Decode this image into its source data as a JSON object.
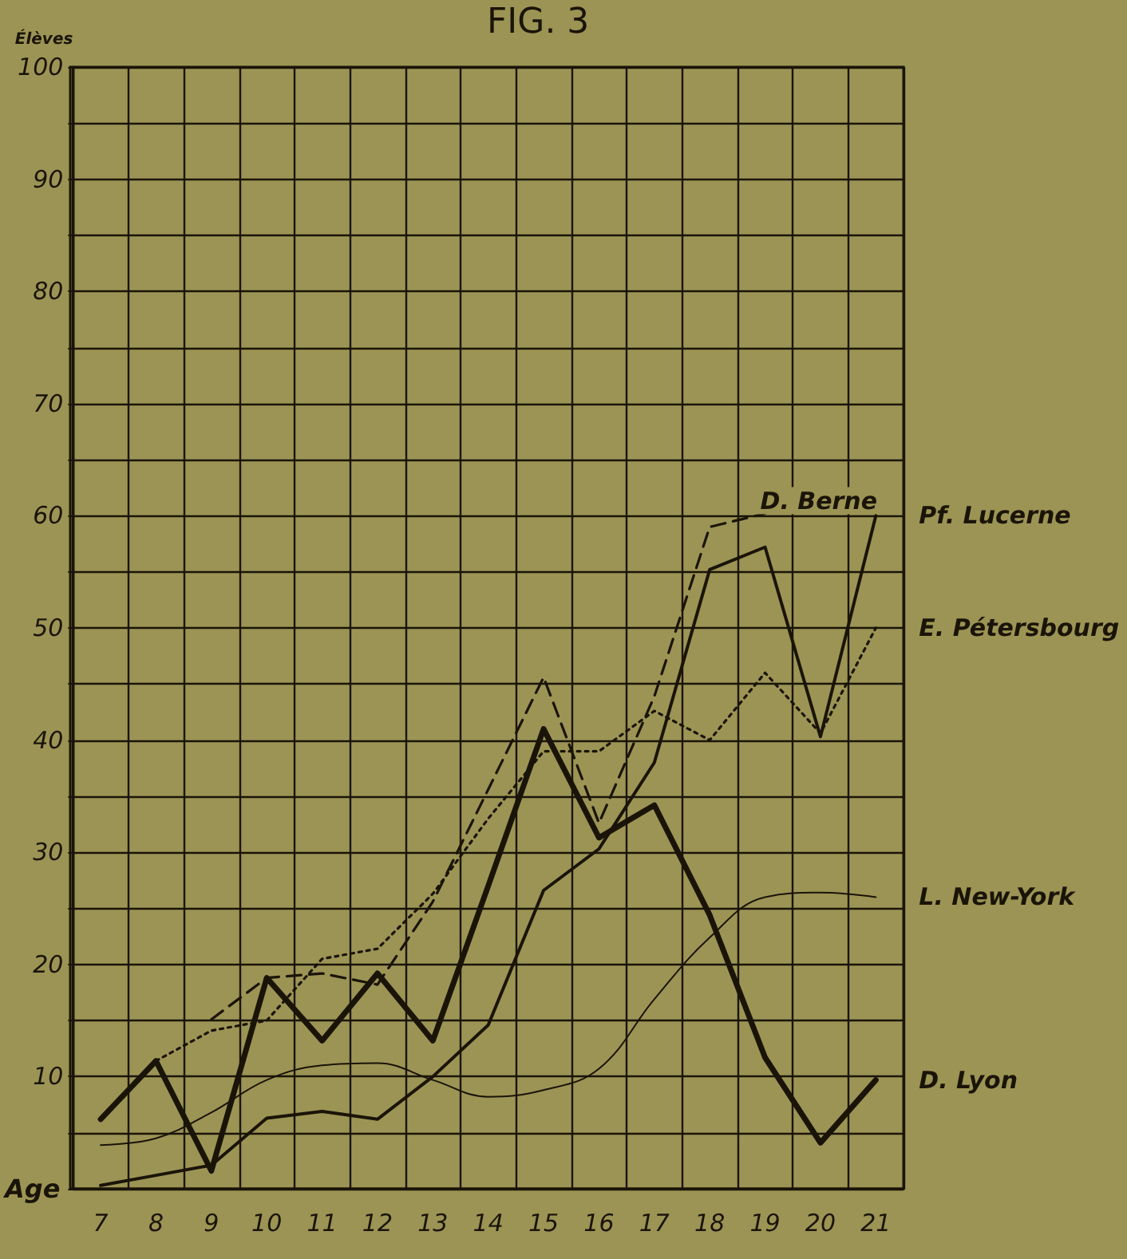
{
  "chart_data": {
    "type": "line",
    "title": "FIG. 3",
    "xlabel": "Age",
    "ylabel": "Élèves",
    "categories": [
      "7",
      "8",
      "9",
      "10",
      "11",
      "12",
      "13",
      "14",
      "15",
      "16",
      "17",
      "18",
      "19",
      "20",
      "21"
    ],
    "series": [
      {
        "name": "D. Lyon",
        "color": "#1a1408",
        "line_style": "solid",
        "values": [
          6.2,
          11.4,
          1.6,
          18.8,
          13.2,
          19.2,
          13.2,
          27,
          41,
          31.3,
          34.2,
          24.4,
          11.7,
          4.1,
          9.7
        ]
      },
      {
        "name": "Pf. Lucerne",
        "color": "#1a1408",
        "line_style": "solid",
        "values": [
          0.3,
          1.2,
          2.1,
          6.3,
          6.9,
          6.2,
          10,
          14.6,
          26.6,
          30.3,
          38,
          55.2,
          57.2,
          40.3,
          60
        ]
      },
      {
        "name": "D. Berne",
        "color": "#1a1408",
        "line_style": "dashed",
        "values": [
          null,
          null,
          15.1,
          18.8,
          19.2,
          18.2,
          25.6,
          35.6,
          45.6,
          32.6,
          43.9,
          59,
          60.2,
          null,
          null
        ]
      },
      {
        "name": "E. Pétersbourg",
        "color": "#1a1408",
        "line_style": "dotted",
        "values": [
          null,
          11.4,
          14.1,
          15,
          20.5,
          21.4,
          26.3,
          33,
          39,
          39,
          42.6,
          40,
          46,
          40.6,
          50
        ]
      },
      {
        "name": "L. New-York",
        "color": "#1a1408",
        "line_style": "solid",
        "values": [
          3.9,
          4.5,
          6.8,
          9.7,
          11,
          11.2,
          9.7,
          8.2,
          8.8,
          10.7,
          16.9,
          22.4,
          26,
          26.4,
          26
        ]
      }
    ],
    "ylim": [
      0,
      100
    ],
    "yticks": [
      {
        "value": 0,
        "label": null
      },
      {
        "value": 5,
        "label": null
      },
      10,
      {
        "value": 15,
        "label": null
      },
      20,
      {
        "value": 25,
        "label": null
      },
      30,
      {
        "value": 35,
        "label": null
      },
      40,
      {
        "value": 45,
        "label": null
      },
      50,
      {
        "value": 55,
        "label": null
      },
      60,
      {
        "value": 65,
        "label": null
      },
      70,
      {
        "value": 75,
        "label": null
      },
      80,
      {
        "value": 85,
        "label": null
      },
      90,
      {
        "value": 95,
        "label": null
      },
      100
    ],
    "grid": true,
    "marker": "none"
  }
}
